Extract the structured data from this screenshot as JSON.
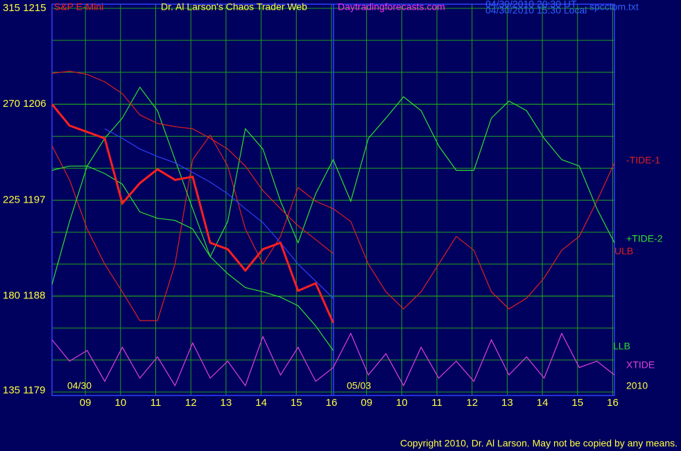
{
  "chart_data": {
    "type": "line",
    "title": "Dr. Al Larson's Chaos Trader Web",
    "instrument": "S&P E-Mini",
    "site": "Daytradingforecasts.com",
    "timestamps": [
      "04/30/2010 20:30 UT",
      "04/30/2010 15:30 Local"
    ],
    "file": "spcctom.txt",
    "copyright": "Copyright 2010, Dr. Al Larson. May not be copied by any means.",
    "xticks": [
      "09",
      "10",
      "11",
      "12",
      "13",
      "14",
      "15",
      "16",
      "09",
      "10",
      "11",
      "12",
      "13",
      "14",
      "15",
      "16"
    ],
    "date_labels": [
      "04/30",
      "05/03",
      "2010"
    ],
    "ylim": [
      1179,
      1215
    ],
    "yticks": [
      {
        "value": 1215,
        "label": "315  1215"
      },
      {
        "value": 1206,
        "label": "270  1206"
      },
      {
        "value": 1197,
        "label": "225  1197"
      },
      {
        "value": 1188,
        "label": "180  1188"
      },
      {
        "value": 1179,
        "label": "135  1179"
      }
    ],
    "ygrid": [
      1182,
      1185,
      1188,
      1191,
      1194,
      1197,
      1200,
      1203,
      1206,
      1209,
      1212
    ],
    "grid": true,
    "series": [
      {
        "name": "-TIDE-1",
        "color": "#e02020",
        "values": [
          1202.1,
          1198.9,
          1194.3,
          1191.0,
          1188.4,
          1185.7,
          1185.7,
          1191.0,
          1200.8,
          1203.1,
          1200.2,
          1194.3,
          1191.0,
          1193.6,
          1198.2,
          1196.9,
          1196.2,
          1195.0,
          1191.0,
          1188.4,
          1186.8,
          1188.4,
          1191.0,
          1193.6,
          1192.3,
          1188.4,
          1186.8,
          1187.8,
          1189.7,
          1192.3,
          1193.6,
          1196.9,
          1200.5
        ]
      },
      {
        "name": "+TIDE-2",
        "color": "#30e030",
        "values": [
          1189.1,
          1195.0,
          1200.2,
          1202.8,
          1204.7,
          1207.6,
          1205.4,
          1200.8,
          1196.2,
          1191.7,
          1195.0,
          1203.7,
          1201.8,
          1196.9,
          1193.0,
          1197.6,
          1200.8,
          1196.9,
          1202.8,
          1204.7,
          1206.7,
          1205.4,
          1202.1,
          1199.8,
          1199.8,
          1204.7,
          1206.3,
          1205.4,
          1202.8,
          1200.8,
          1200.2,
          1196.2,
          1193.0
        ]
      },
      {
        "name": "ULB",
        "color": "#e02020",
        "values": [
          1208.9,
          1209.1,
          1208.8,
          1208.1,
          1207.0,
          1205.0,
          1204.2,
          1203.9,
          1203.7,
          1202.8,
          1201.8,
          1200.2,
          1197.9,
          1196.2,
          1194.6,
          1193.3,
          1192.0,
          null,
          null,
          null,
          null,
          null,
          null,
          null,
          null,
          null,
          null,
          null,
          null,
          null,
          null,
          null,
          null
        ]
      },
      {
        "name": "LLB",
        "color": "#30e030",
        "values": [
          1199.8,
          1200.2,
          1200.2,
          1199.5,
          1198.5,
          1195.9,
          1195.3,
          1195.1,
          1194.3,
          1191.7,
          1190.1,
          1188.8,
          1188.4,
          1187.9,
          1187.1,
          1185.2,
          1182.9,
          null,
          null,
          null,
          null,
          null,
          null,
          null,
          null,
          null,
          null,
          null,
          null,
          null,
          null,
          null,
          null
        ]
      },
      {
        "name": "XTIDE",
        "color": "#e040e0",
        "values": [
          1183.9,
          1181.9,
          1182.9,
          1180.0,
          1183.2,
          1180.3,
          1182.3,
          1179.6,
          1183.6,
          1180.3,
          1181.9,
          1179.6,
          1184.2,
          1180.6,
          1183.2,
          1180.0,
          1181.3,
          1184.5,
          1180.6,
          1182.6,
          1179.6,
          1183.2,
          1180.3,
          1181.9,
          1180.0,
          1183.9,
          1180.6,
          1182.3,
          1180.3,
          1184.5,
          1181.3,
          1181.9,
          1180.6
        ]
      },
      {
        "color": "#3040ff",
        "values": [
          null,
          null,
          null,
          1203.7,
          1202.8,
          1201.8,
          1201.1,
          1200.5,
          1199.6,
          1198.7,
          1197.6,
          1196.2,
          1194.9,
          1193.0,
          1191.0,
          1189.4,
          1187.8,
          null,
          null,
          null,
          null,
          null,
          null,
          null,
          null,
          null,
          null,
          null,
          null,
          null,
          null,
          null,
          null
        ]
      },
      {
        "color": "#ff2020",
        "width": 3,
        "values": [
          1206,
          1204,
          1203.4,
          1202.8,
          1196.7,
          1198.6,
          1199.9,
          1198.9,
          1199.2,
          1193,
          1192.4,
          1190.4,
          1192.4,
          1193,
          1188.5,
          1189.2,
          1185.5,
          null,
          null,
          null,
          null,
          null,
          null,
          null,
          null,
          null,
          null,
          null,
          null,
          null,
          null,
          null,
          null
        ]
      }
    ]
  }
}
